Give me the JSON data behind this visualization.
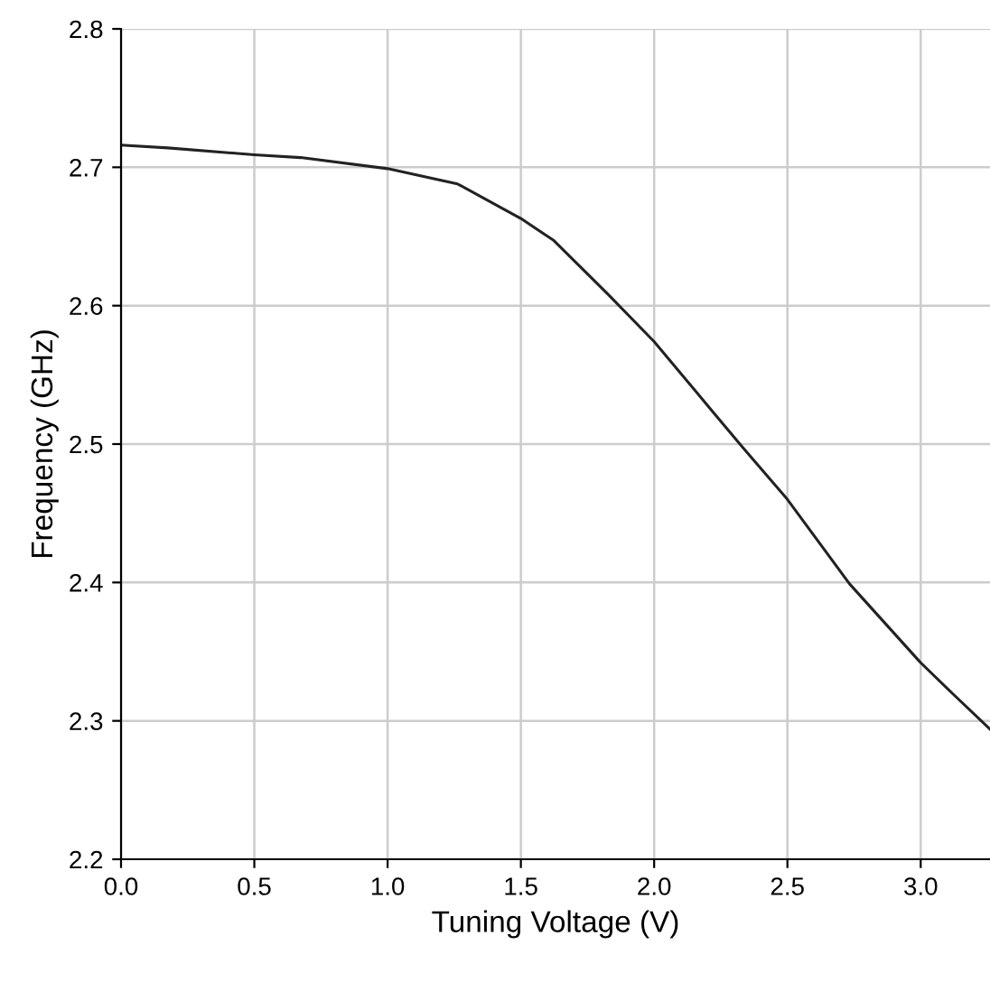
{
  "chart_data": {
    "type": "line",
    "xlabel": "Tuning Voltage (V)",
    "ylabel": "Frequency (GHz)",
    "x": [
      0,
      0.176,
      0.5,
      0.674,
      1.0,
      1.262,
      1.5,
      1.624,
      1.828,
      2.0,
      2.213,
      2.326,
      2.5,
      2.733,
      3.0,
      3.118,
      3.26
    ],
    "series": [
      {
        "color": "#222222",
        "values": [
          2.716,
          2.714,
          2.709,
          2.707,
          2.699,
          2.688,
          2.663,
          2.647,
          2.608,
          2.574,
          2.525,
          2.499,
          2.46,
          2.399,
          2.342,
          2.32,
          2.294
        ]
      }
    ],
    "xlim": [
      0,
      3.26
    ],
    "xticks": [
      {
        "value": 0,
        "label": "0.0"
      },
      0.5,
      {
        "value": 1,
        "label": "1.0"
      },
      1.5,
      {
        "value": 2,
        "label": "2.0"
      },
      2.5,
      {
        "value": 3,
        "label": "3.0"
      }
    ],
    "ylim": [
      2.2,
      2.8
    ],
    "yticks": [
      2.2,
      2.3,
      2.4,
      2.5,
      2.6,
      2.7,
      2.8
    ],
    "grid": true,
    "marker": "none",
    "line_style": "solid",
    "legend": false
  }
}
